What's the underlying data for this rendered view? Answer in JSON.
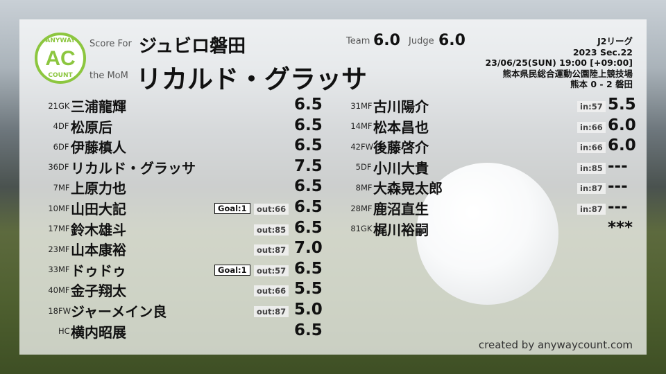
{
  "header": {
    "logo_top": "ANYWAY",
    "logo_mid": "AC",
    "logo_bottom": "COUNT",
    "score_for_label": "Score For",
    "team": "ジュビロ磐田",
    "mom_label": "the MoM",
    "mom": "リカルド・グラッサ",
    "team_label": "Team",
    "team_score": "6.0",
    "judge_label": "Judge",
    "judge_score": "6.0"
  },
  "match": {
    "league": "J2リーグ",
    "section": "2023 Sec.22",
    "datetime": "23/06/25(SUN) 19:00 [+09:00]",
    "venue": "熊本県民総合運動公園陸上競技場",
    "result": "熊本 0 - 2 磐田"
  },
  "starters": [
    {
      "num": "21",
      "pos": "GK",
      "name": "三浦龍輝",
      "score": "6.5",
      "goal": "",
      "sub": ""
    },
    {
      "num": "4",
      "pos": "DF",
      "name": "松原后",
      "score": "6.5",
      "goal": "",
      "sub": ""
    },
    {
      "num": "6",
      "pos": "DF",
      "name": "伊藤槙人",
      "score": "6.5",
      "goal": "",
      "sub": ""
    },
    {
      "num": "36",
      "pos": "DF",
      "name": "リカルド・グラッサ",
      "score": "7.5",
      "goal": "",
      "sub": ""
    },
    {
      "num": "7",
      "pos": "MF",
      "name": "上原力也",
      "score": "6.5",
      "goal": "",
      "sub": ""
    },
    {
      "num": "10",
      "pos": "MF",
      "name": "山田大記",
      "score": "6.5",
      "goal": "Goal:1",
      "sub": "out:66"
    },
    {
      "num": "17",
      "pos": "MF",
      "name": "鈴木雄斗",
      "score": "6.5",
      "goal": "",
      "sub": "out:85"
    },
    {
      "num": "23",
      "pos": "MF",
      "name": "山本康裕",
      "score": "7.0",
      "goal": "",
      "sub": "out:87"
    },
    {
      "num": "33",
      "pos": "MF",
      "name": "ドゥドゥ",
      "score": "6.5",
      "goal": "Goal:1",
      "sub": "out:57"
    },
    {
      "num": "40",
      "pos": "MF",
      "name": "金子翔太",
      "score": "5.5",
      "goal": "",
      "sub": "out:66"
    },
    {
      "num": "18",
      "pos": "FW",
      "name": "ジャーメイン良",
      "score": "5.0",
      "goal": "",
      "sub": "out:87"
    },
    {
      "num": "",
      "pos": "HC",
      "name": "横内昭展",
      "score": "6.5",
      "goal": "",
      "sub": ""
    }
  ],
  "subs": [
    {
      "num": "31",
      "pos": "MF",
      "name": "古川陽介",
      "score": "5.5",
      "sub": "in:57"
    },
    {
      "num": "14",
      "pos": "MF",
      "name": "松本昌也",
      "score": "6.0",
      "sub": "in:66"
    },
    {
      "num": "42",
      "pos": "FW",
      "name": "後藤啓介",
      "score": "6.0",
      "sub": "in:66"
    },
    {
      "num": "5",
      "pos": "DF",
      "name": "小川大貴",
      "score": "---",
      "sub": "in:85"
    },
    {
      "num": "8",
      "pos": "MF",
      "name": "大森晃太郎",
      "score": "---",
      "sub": "in:87"
    },
    {
      "num": "28",
      "pos": "MF",
      "name": "鹿沼直生",
      "score": "---",
      "sub": "in:87"
    },
    {
      "num": "81",
      "pos": "GK",
      "name": "梶川裕嗣",
      "score": "***",
      "sub": ""
    }
  ],
  "footer": "created by anywaycount.com",
  "colors": {
    "accent": "#8cc63f"
  }
}
